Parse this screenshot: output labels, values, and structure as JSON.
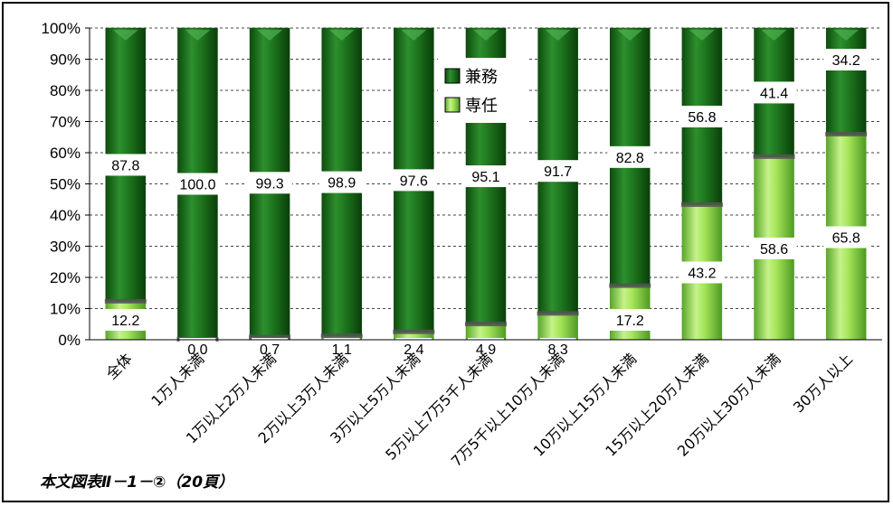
{
  "chart_data": {
    "type": "bar",
    "stacked": true,
    "categories": [
      "全体",
      "1万人未満",
      "1万以上2万人未満",
      "2万以上3万人未満",
      "3万以上5万人未満",
      "5万以上7万5千人未満",
      "7万5千以上10万人未満",
      "10万以上15万人未満",
      "15万以上20万人未満",
      "20万以上30万人未満",
      "30万人以上"
    ],
    "series": [
      {
        "name": "専任",
        "values": [
          12.2,
          0.0,
          0.7,
          1.1,
          2.4,
          4.9,
          8.3,
          17.2,
          43.2,
          58.6,
          65.8
        ],
        "color": "#9be052"
      },
      {
        "name": "兼務",
        "values": [
          87.8,
          100.0,
          99.3,
          98.9,
          97.6,
          95.1,
          91.7,
          82.8,
          56.8,
          41.4,
          34.2
        ],
        "color": "#1f7a1f"
      }
    ],
    "data_labels": {
      "専任": [
        "12.2",
        "0.0",
        "0.7",
        "1.1",
        "2.4",
        "4.9",
        "8.3",
        "17.2",
        "43.2",
        "58.6",
        "65.8"
      ],
      "兼務": [
        "87.8",
        "100.0",
        "99.3",
        "98.9",
        "97.6",
        "95.1",
        "91.7",
        "82.8",
        "56.8",
        "41.4",
        "34.2"
      ]
    },
    "yticks": [
      "0%",
      "10%",
      "20%",
      "30%",
      "40%",
      "50%",
      "60%",
      "70%",
      "80%",
      "90%",
      "100%"
    ],
    "ylim": [
      0,
      100
    ],
    "grid": "horizontal dashed",
    "legend": {
      "position": "top-center",
      "items": [
        "兼務",
        "専任"
      ]
    }
  },
  "caption": "本文図表Ⅱ－1－②（20頁）"
}
